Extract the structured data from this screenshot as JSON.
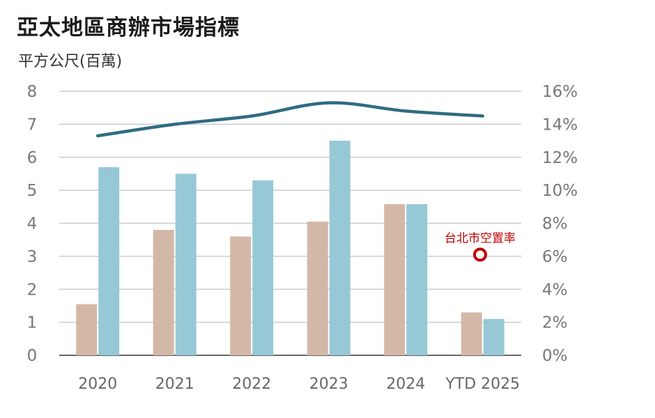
{
  "title": "亞太地區商辦市場指標",
  "subtitle": "平方公尺(百萬)",
  "chart_data": {
    "type": "bar",
    "categories": [
      "2020",
      "2021",
      "2022",
      "2023",
      "2024",
      "YTD 2025"
    ],
    "series": [
      {
        "kind": "bar",
        "axis": "left",
        "color": "#d4b8a7",
        "values": [
          1.55,
          3.8,
          3.6,
          4.05,
          4.58,
          1.3
        ]
      },
      {
        "kind": "bar",
        "axis": "left",
        "color": "#97c8d6",
        "values": [
          5.7,
          5.5,
          5.3,
          6.5,
          4.58,
          1.1
        ]
      },
      {
        "kind": "line",
        "axis": "right",
        "color": "#2f6b82",
        "values": [
          13.3,
          14.0,
          14.5,
          15.3,
          14.8,
          14.5
        ]
      }
    ],
    "ylim": [
      0,
      8
    ],
    "yticks": [
      "0",
      "1",
      "2",
      "3",
      "4",
      "5",
      "6",
      "7",
      "8"
    ],
    "y2lim": [
      0,
      16
    ],
    "y2ticks": [
      "0%",
      "2%",
      "4%",
      "6%",
      "8%",
      "10%",
      "12%",
      "14%",
      "16%"
    ],
    "annotations": [
      {
        "text": "台北市空置率",
        "series": 2,
        "value": 6.1,
        "color": "#c00000"
      }
    ],
    "grid": true
  }
}
